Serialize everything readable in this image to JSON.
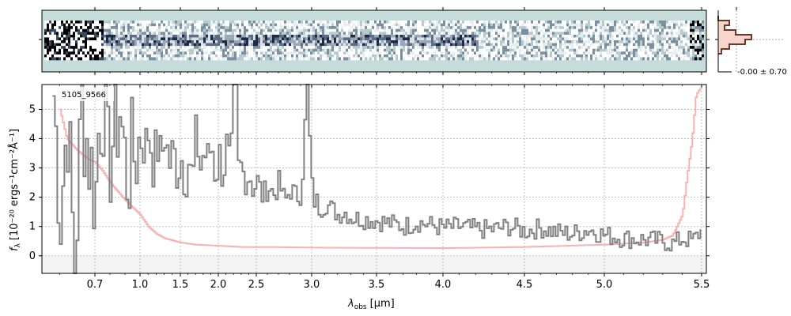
{
  "chart_data": [
    {
      "type": "heatmap",
      "title": "",
      "description": "2D spectrum cutout",
      "colors": {
        "background": "#c5dcdb",
        "trace": "#1e2a44",
        "noise": "#ffffff"
      }
    },
    {
      "type": "line",
      "title": "",
      "object_id": "5105_9566",
      "xlabel_main": "λ",
      "xlabel_sub": "obs",
      "xlabel_unit": "[μm]",
      "ylabel_main": "f",
      "ylabel_sub": "λ",
      "ylabel_unit": "[10⁻²⁰ ergs⁻¹cm⁻²Å⁻¹]",
      "x_scale": "reciprocal-like (resolution-spaced)",
      "x_ticks": [
        "0.7",
        "1.0",
        "1.5",
        "2.0",
        "2.5",
        "3.0",
        "3.5",
        "4.0",
        "4.5",
        "5.0",
        "5.5"
      ],
      "y_ticks": [
        "0",
        "1",
        "2",
        "3",
        "4",
        "5"
      ],
      "xlim": [
        0.55,
        5.52
      ],
      "ylim": [
        -0.6,
        5.85
      ],
      "grid": true,
      "series": [
        {
          "name": "",
          "color": "#808080",
          "x": [
            0.58,
            0.6,
            0.62,
            0.64,
            0.66,
            0.68,
            0.7,
            0.72,
            0.75,
            0.78,
            0.82,
            0.86,
            0.9,
            0.95,
            1.0,
            1.05,
            1.1,
            1.15,
            1.2,
            1.25,
            1.3,
            1.35,
            1.4,
            1.45,
            1.5,
            1.55,
            1.6,
            1.65,
            1.7,
            1.75,
            1.8,
            1.85,
            1.9,
            1.95,
            2.0,
            2.05,
            2.1,
            2.15,
            2.2,
            2.25,
            2.3,
            2.35,
            2.4,
            2.45,
            2.5,
            2.55,
            2.6,
            2.65,
            2.7,
            2.75,
            2.8,
            2.85,
            2.9,
            2.95,
            3.0,
            3.05,
            3.1,
            3.15,
            3.2,
            3.25,
            3.3,
            3.4,
            3.5,
            3.6,
            3.7,
            3.8,
            3.9,
            4.0,
            4.1,
            4.2,
            4.3,
            4.4,
            4.5,
            4.6,
            4.7,
            4.8,
            4.9,
            5.0,
            5.1,
            5.2,
            5.3,
            5.35,
            5.4,
            5.45,
            5.5
          ],
          "y": [
            5.5,
            1.5,
            4.8,
            -0.6,
            5.2,
            3.5,
            2.0,
            4.5,
            5.4,
            3.0,
            4.2,
            5.1,
            2.8,
            3.4,
            4.0,
            3.7,
            4.3,
            3.1,
            3.8,
            3.3,
            4.2,
            3.1,
            3.6,
            2.9,
            3.4,
            2.6,
            3.3,
            2.4,
            4.3,
            3.0,
            3.6,
            3.2,
            3.9,
            2.8,
            3.4,
            2.9,
            3.7,
            2.7,
            5.8,
            2.8,
            3.0,
            2.5,
            2.8,
            2.2,
            2.6,
            2.0,
            2.4,
            2.1,
            2.5,
            1.8,
            2.3,
            2.0,
            2.2,
            5.8,
            2.0,
            1.7,
            1.8,
            1.6,
            1.4,
            1.5,
            1.3,
            1.25,
            1.2,
            1.1,
            1.0,
            1.15,
            1.05,
            0.95,
            1.0,
            0.9,
            0.9,
            1.0,
            0.85,
            0.95,
            0.8,
            0.75,
            0.9,
            0.7,
            0.6,
            0.55,
            0.5,
            0.4,
            0.6,
            0.5,
            0.9
          ]
        },
        {
          "name": "",
          "color": "#f4a6a6",
          "x": [
            0.6,
            0.62,
            0.65,
            0.68,
            0.7,
            0.75,
            0.8,
            0.85,
            0.9,
            1.0,
            1.1,
            1.2,
            1.3,
            1.5,
            1.7,
            2.0,
            2.3,
            2.6,
            3.0,
            3.5,
            4.0,
            4.5,
            5.0,
            5.2,
            5.3,
            5.35,
            5.4,
            5.42,
            5.45,
            5.47,
            5.5
          ],
          "y": [
            5.0,
            4.0,
            3.6,
            3.3,
            3.2,
            2.9,
            2.5,
            2.2,
            1.9,
            1.4,
            1.0,
            0.75,
            0.6,
            0.45,
            0.38,
            0.34,
            0.3,
            0.3,
            0.28,
            0.27,
            0.26,
            0.3,
            0.38,
            0.45,
            0.55,
            0.7,
            1.4,
            2.5,
            4.0,
            5.5,
            5.8
          ]
        }
      ]
    },
    {
      "type": "bar",
      "title": "",
      "description": "residual histogram",
      "annotation": "-0.00 ± 0.70",
      "orientation": "horizontal",
      "colors": {
        "fill": "#f8d5cc",
        "step": "#6b3a2c"
      }
    }
  ]
}
